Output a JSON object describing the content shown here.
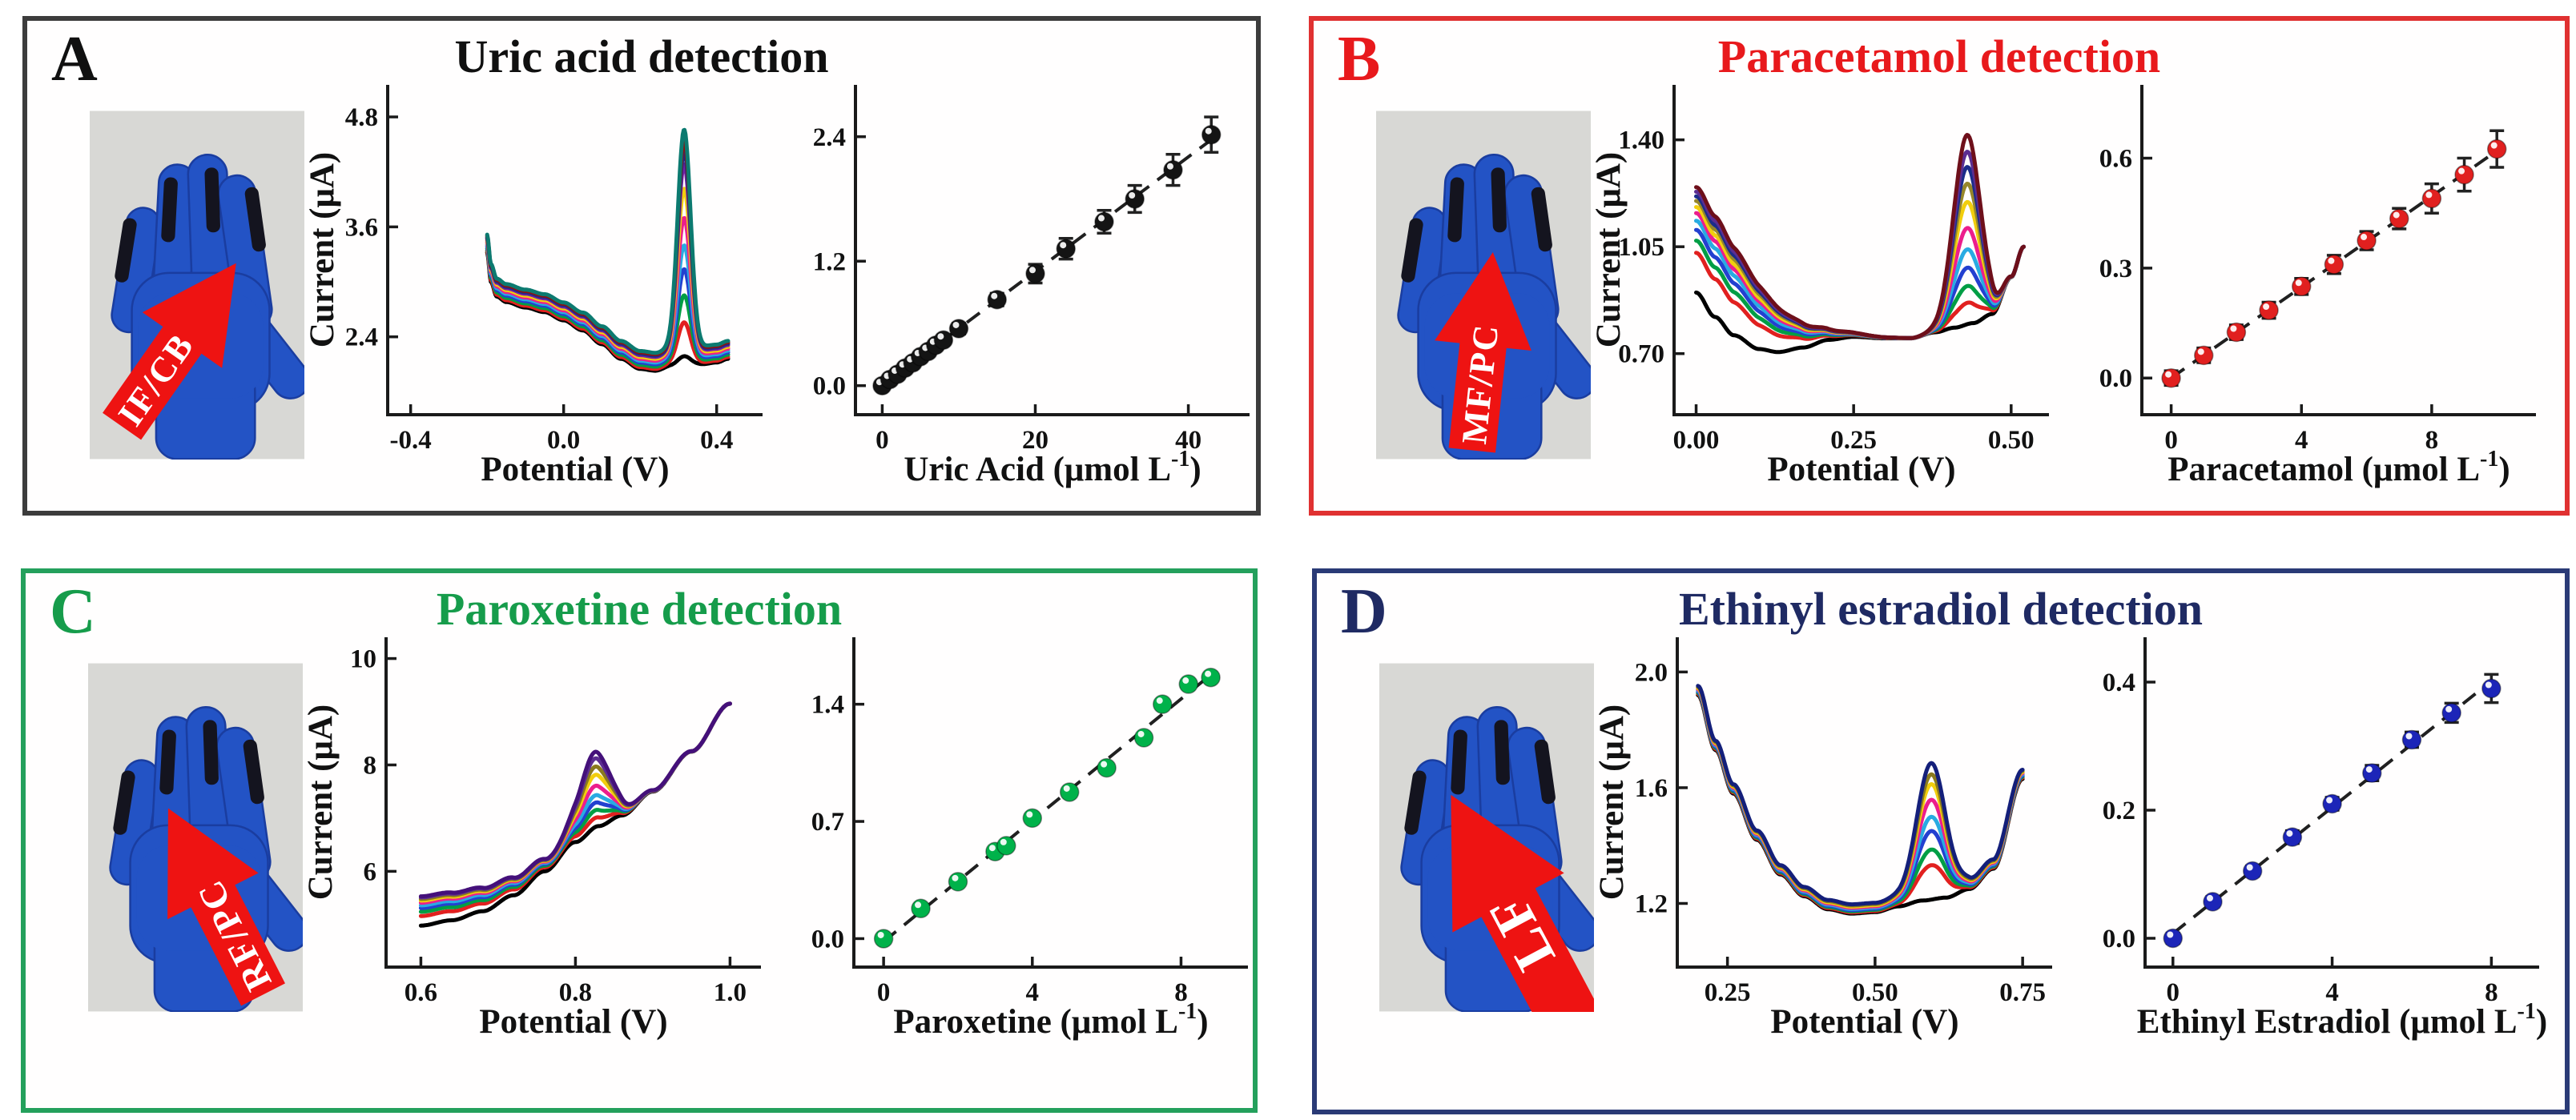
{
  "panels": [
    {
      "letter": "A",
      "title": "Uric acid detection",
      "accent_color": "#101010",
      "border_color": "#3c3c3c",
      "glove": {
        "label": "IF/CB",
        "arrow_color": "#ee1312",
        "rotation": 35,
        "scale": 1.0
      }
    },
    {
      "letter": "B",
      "title": "Paracetamol detection",
      "accent_color": "#e8191c",
      "border_color": "#e03131",
      "glove": {
        "label": "MF/PC",
        "arrow_color": "#ee1312",
        "rotation": 6,
        "scale": 1.0
      }
    },
    {
      "letter": "C",
      "title": "Paroxetine detection",
      "accent_color": "#169c4b",
      "border_color": "#24a05c",
      "glove": {
        "label": "RF/PC",
        "arrow_color": "#ee1312",
        "rotation": -27,
        "scale": 1.05
      }
    },
    {
      "letter": "D",
      "title": "Ethinyl estradiol detection",
      "accent_color": "#1f2a63",
      "border_color": "#2a3a76",
      "glove": {
        "label": "LF",
        "arrow_color": "#ee1312",
        "rotation": -28,
        "scale": 1.3
      }
    }
  ],
  "chart_data": [
    {
      "type": "line",
      "name": "uric-acid-voltammograms",
      "xlabel": "Potential (V)",
      "ylabel": "Current (μA)",
      "xlim": [
        -0.46,
        0.52
      ],
      "ylim": [
        1.55,
        5.15
      ],
      "xticks": [
        {
          "v": -0.4,
          "t": "-0.4"
        },
        {
          "v": 0.0,
          "t": "0.0"
        },
        {
          "v": 0.4,
          "t": "0.4"
        }
      ],
      "yticks": [
        {
          "v": 2.4,
          "t": "2.4"
        },
        {
          "v": 3.6,
          "t": "3.6"
        },
        {
          "v": 4.8,
          "t": "4.8"
        }
      ],
      "peak": {
        "center": 0.315,
        "width": 0.024
      },
      "base": [
        [
          -0.2,
          3.32
        ],
        [
          -0.19,
          3.0
        ],
        [
          -0.175,
          2.84
        ],
        [
          -0.15,
          2.78
        ],
        [
          -0.1,
          2.72
        ],
        [
          -0.05,
          2.67
        ],
        [
          0.0,
          2.58
        ],
        [
          0.05,
          2.47
        ],
        [
          0.1,
          2.32
        ],
        [
          0.15,
          2.16
        ],
        [
          0.2,
          2.05
        ],
        [
          0.24,
          2.03
        ],
        [
          0.28,
          2.08
        ],
        [
          0.36,
          2.1
        ],
        [
          0.4,
          2.12
        ],
        [
          0.43,
          2.16
        ]
      ],
      "series": [
        {
          "color": "#000000",
          "peak": 0.1,
          "shift": 0.0
        },
        {
          "color": "#e1201f",
          "peak": 0.45,
          "shift": 0.02
        },
        {
          "color": "#009e45",
          "peak": 0.72,
          "shift": 0.045
        },
        {
          "color": "#2340d0",
          "peak": 0.98,
          "shift": 0.07
        },
        {
          "color": "#29abe2",
          "peak": 1.22,
          "shift": 0.09
        },
        {
          "color": "#ec1e8c",
          "peak": 1.5,
          "shift": 0.11
        },
        {
          "color": "#f2ce0d",
          "peak": 1.8,
          "shift": 0.13
        },
        {
          "color": "#7a1fa2",
          "peak": 2.05,
          "shift": 0.15
        },
        {
          "color": "#1b2c8a",
          "peak": 2.18,
          "shift": 0.165
        },
        {
          "color": "#8c1010",
          "peak": 2.28,
          "shift": 0.18
        },
        {
          "color": "#0c7a70",
          "peak": 2.38,
          "shift": 0.195
        }
      ]
    },
    {
      "type": "scatter",
      "name": "uric-acid-calibration",
      "xlabel": {
        "text": "Uric Acid (μmol L",
        "sup": "-1",
        "after": ")"
      },
      "xlim": [
        -3.5,
        48
      ],
      "ylim": [
        -0.28,
        2.9
      ],
      "xticks": [
        {
          "v": 0,
          "t": "0"
        },
        {
          "v": 20,
          "t": "20"
        },
        {
          "v": 40,
          "t": "40"
        }
      ],
      "yticks": [
        {
          "v": 0.0,
          "t": "0.0"
        },
        {
          "v": 1.2,
          "t": "1.2"
        },
        {
          "v": 2.4,
          "t": "2.4"
        }
      ],
      "marker_color": "#141414",
      "points": [
        [
          0,
          0.0,
          0.03
        ],
        [
          1,
          0.06,
          0.03
        ],
        [
          2,
          0.11,
          0.03
        ],
        [
          3,
          0.17,
          0.03
        ],
        [
          4,
          0.22,
          0.03
        ],
        [
          5,
          0.28,
          0.035
        ],
        [
          6,
          0.33,
          0.035
        ],
        [
          7,
          0.39,
          0.04
        ],
        [
          8,
          0.44,
          0.04
        ],
        [
          10,
          0.55,
          0.05
        ],
        [
          15,
          0.83,
          0.06
        ],
        [
          20,
          1.08,
          0.09
        ],
        [
          24,
          1.32,
          0.1
        ],
        [
          29,
          1.58,
          0.11
        ],
        [
          33,
          1.8,
          0.13
        ],
        [
          38,
          2.08,
          0.15
        ],
        [
          43,
          2.42,
          0.17
        ]
      ]
    },
    {
      "type": "line",
      "name": "paracetamol-voltammograms",
      "xlabel": "Potential (V)",
      "ylabel": "Current (μA)",
      "xlim": [
        -0.035,
        0.56
      ],
      "ylim": [
        0.5,
        1.58
      ],
      "xticks": [
        {
          "v": 0.0,
          "t": "0.00"
        },
        {
          "v": 0.25,
          "t": "0.25"
        },
        {
          "v": 0.5,
          "t": "0.50"
        }
      ],
      "yticks": [
        {
          "v": 0.7,
          "t": "0.70"
        },
        {
          "v": 1.05,
          "t": "1.05"
        },
        {
          "v": 1.4,
          "t": "1.40"
        }
      ],
      "peak": {
        "center": 0.43,
        "width": 0.03
      },
      "boost": {
        "center": 0.0,
        "width": 0.14
      },
      "base": [
        [
          0.0,
          0.9
        ],
        [
          0.03,
          0.82
        ],
        [
          0.06,
          0.76
        ],
        [
          0.1,
          0.715
        ],
        [
          0.13,
          0.705
        ],
        [
          0.17,
          0.72
        ],
        [
          0.21,
          0.745
        ],
        [
          0.25,
          0.755
        ],
        [
          0.3,
          0.75
        ],
        [
          0.34,
          0.75
        ],
        [
          0.38,
          0.77
        ],
        [
          0.41,
          0.785
        ],
        [
          0.44,
          0.8
        ],
        [
          0.47,
          0.83
        ],
        [
          0.5,
          0.95
        ],
        [
          0.52,
          1.05
        ]
      ],
      "series": [
        {
          "color": "#000000",
          "peak": 0.0,
          "shift": 0.0
        },
        {
          "color": "#e1201f",
          "peak": 0.07,
          "shift": 0.13
        },
        {
          "color": "#009e45",
          "peak": 0.125,
          "shift": 0.17
        },
        {
          "color": "#2340d0",
          "peak": 0.185,
          "shift": 0.205
        },
        {
          "color": "#29abe2",
          "peak": 0.245,
          "shift": 0.235
        },
        {
          "color": "#ec1e8c",
          "peak": 0.315,
          "shift": 0.26
        },
        {
          "color": "#f2ce0d",
          "peak": 0.4,
          "shift": 0.28
        },
        {
          "color": "#96872a",
          "peak": 0.46,
          "shift": 0.3
        },
        {
          "color": "#1b2c8a",
          "peak": 0.515,
          "shift": 0.315
        },
        {
          "color": "#5c2d91",
          "peak": 0.565,
          "shift": 0.33
        },
        {
          "color": "#6e0f1a",
          "peak": 0.62,
          "shift": 0.345
        }
      ]
    },
    {
      "type": "scatter",
      "name": "paracetamol-calibration",
      "xlabel": {
        "text": "Paracetamol (μmol L",
        "sup": "-1",
        "after": ")"
      },
      "xlim": [
        -0.9,
        11.2
      ],
      "ylim": [
        -0.1,
        0.8
      ],
      "xticks": [
        {
          "v": 0,
          "t": "0"
        },
        {
          "v": 4,
          "t": "4"
        },
        {
          "v": 8,
          "t": "8"
        }
      ],
      "yticks": [
        {
          "v": 0.0,
          "t": "0.0"
        },
        {
          "v": 0.3,
          "t": "0.3"
        },
        {
          "v": 0.6,
          "t": "0.6"
        }
      ],
      "marker_color": "#e1201f",
      "points": [
        [
          0,
          0.0,
          0.02
        ],
        [
          1,
          0.062,
          0.02
        ],
        [
          2,
          0.125,
          0.02
        ],
        [
          3,
          0.185,
          0.022
        ],
        [
          4,
          0.25,
          0.022
        ],
        [
          5,
          0.31,
          0.025
        ],
        [
          6,
          0.375,
          0.025
        ],
        [
          7,
          0.435,
          0.028
        ],
        [
          8,
          0.49,
          0.04
        ],
        [
          9,
          0.555,
          0.045
        ],
        [
          10,
          0.625,
          0.05
        ]
      ]
    },
    {
      "type": "line",
      "name": "paroxetine-voltammograms",
      "xlabel": "Potential (V)",
      "ylabel": "Current (μA)",
      "xlim": [
        0.555,
        1.04
      ],
      "ylim": [
        4.2,
        10.4
      ],
      "xticks": [
        {
          "v": 0.6,
          "t": "0.6"
        },
        {
          "v": 0.8,
          "t": "0.8"
        },
        {
          "v": 1.0,
          "t": "1.0"
        }
      ],
      "yticks": [
        {
          "v": 6,
          "t": "6"
        },
        {
          "v": 8,
          "t": "8"
        },
        {
          "v": 10,
          "t": "10"
        }
      ],
      "peak": {
        "center": 0.825,
        "width": 0.028
      },
      "boost": {
        "center": 0.6,
        "width": 0.17
      },
      "base": [
        [
          0.6,
          4.98
        ],
        [
          0.64,
          5.08
        ],
        [
          0.68,
          5.25
        ],
        [
          0.72,
          5.55
        ],
        [
          0.76,
          6.0
        ],
        [
          0.8,
          6.55
        ],
        [
          0.83,
          6.85
        ],
        [
          0.86,
          7.05
        ],
        [
          0.9,
          7.5
        ],
        [
          0.95,
          8.25
        ],
        [
          1.0,
          9.15
        ]
      ],
      "series": [
        {
          "color": "#000000",
          "peak": 0.0,
          "shift": 0.0
        },
        {
          "color": "#e1201f",
          "peak": 0.14,
          "shift": 0.18
        },
        {
          "color": "#009e45",
          "peak": 0.27,
          "shift": 0.26
        },
        {
          "color": "#2340d0",
          "peak": 0.4,
          "shift": 0.33
        },
        {
          "color": "#29abe2",
          "peak": 0.53,
          "shift": 0.38
        },
        {
          "color": "#ec1e8c",
          "peak": 0.7,
          "shift": 0.43
        },
        {
          "color": "#f2ce0d",
          "peak": 0.9,
          "shift": 0.47
        },
        {
          "color": "#8a7a1e",
          "peak": 1.05,
          "shift": 0.5
        },
        {
          "color": "#5c2d91",
          "peak": 1.2,
          "shift": 0.53
        },
        {
          "color": "#44107a",
          "peak": 1.32,
          "shift": 0.55
        }
      ]
    },
    {
      "type": "scatter",
      "name": "paroxetine-calibration",
      "xlabel": {
        "text": "Paroxetine (μmol L",
        "sup": "-1",
        "after": ")"
      },
      "xlim": [
        -0.8,
        9.8
      ],
      "ylim": [
        -0.17,
        1.8
      ],
      "xticks": [
        {
          "v": 0,
          "t": "0"
        },
        {
          "v": 4,
          "t": "4"
        },
        {
          "v": 8,
          "t": "8"
        }
      ],
      "yticks": [
        {
          "v": 0.0,
          "t": "0.0"
        },
        {
          "v": 0.7,
          "t": "0.7"
        },
        {
          "v": 1.4,
          "t": "1.4"
        }
      ],
      "marker_color": "#00b24a",
      "points": [
        [
          0,
          0.0,
          0
        ],
        [
          1,
          0.18,
          0
        ],
        [
          2,
          0.34,
          0
        ],
        [
          3,
          0.52,
          0
        ],
        [
          3.3,
          0.555,
          0
        ],
        [
          4,
          0.72,
          0
        ],
        [
          5,
          0.875,
          0
        ],
        [
          6,
          1.02,
          0
        ],
        [
          7,
          1.2,
          0
        ],
        [
          7.5,
          1.4,
          0
        ],
        [
          8.2,
          1.52,
          0
        ],
        [
          8.8,
          1.56,
          0
        ]
      ]
    },
    {
      "type": "line",
      "name": "ethinyl-estradiol-voltammograms",
      "xlabel": "Potential (V)",
      "ylabel": "Current (μA)",
      "xlim": [
        0.165,
        0.8
      ],
      "ylim": [
        0.98,
        2.12
      ],
      "xticks": [
        {
          "v": 0.25,
          "t": "0.25"
        },
        {
          "v": 0.5,
          "t": "0.50"
        },
        {
          "v": 0.75,
          "t": "0.75"
        }
      ],
      "yticks": [
        {
          "v": 1.2,
          "t": "1.2"
        },
        {
          "v": 1.6,
          "t": "1.6"
        },
        {
          "v": 2.0,
          "t": "2.0"
        }
      ],
      "peak": {
        "center": 0.595,
        "width": 0.033
      },
      "base": [
        [
          0.2,
          1.92
        ],
        [
          0.23,
          1.73
        ],
        [
          0.26,
          1.58
        ],
        [
          0.3,
          1.42
        ],
        [
          0.34,
          1.3
        ],
        [
          0.38,
          1.225
        ],
        [
          0.42,
          1.18
        ],
        [
          0.46,
          1.165
        ],
        [
          0.5,
          1.17
        ],
        [
          0.54,
          1.19
        ],
        [
          0.58,
          1.21
        ],
        [
          0.62,
          1.22
        ],
        [
          0.66,
          1.25
        ],
        [
          0.7,
          1.32
        ],
        [
          0.75,
          1.63
        ]
      ],
      "series": [
        {
          "color": "#000000",
          "peak": 0.0,
          "shift": 0.0
        },
        {
          "color": "#e1201f",
          "peak": 0.115,
          "shift": 0.004
        },
        {
          "color": "#009e45",
          "peak": 0.165,
          "shift": 0.008
        },
        {
          "color": "#2340d0",
          "peak": 0.225,
          "shift": 0.012
        },
        {
          "color": "#29abe2",
          "peak": 0.27,
          "shift": 0.016
        },
        {
          "color": "#ec1e8c",
          "peak": 0.325,
          "shift": 0.02
        },
        {
          "color": "#f2ce0d",
          "peak": 0.375,
          "shift": 0.024
        },
        {
          "color": "#8a7a1e",
          "peak": 0.405,
          "shift": 0.028
        },
        {
          "color": "#141f7a",
          "peak": 0.44,
          "shift": 0.032
        }
      ]
    },
    {
      "type": "scatter",
      "name": "ethinyl-estradiol-calibration",
      "xlabel": {
        "text": "Ethinyl Estradiol (μmol L",
        "sup": "-1",
        "after": ")"
      },
      "xlim": [
        -0.7,
        9.2
      ],
      "ylim": [
        -0.045,
        0.47
      ],
      "xticks": [
        {
          "v": 0,
          "t": "0"
        },
        {
          "v": 4,
          "t": "4"
        },
        {
          "v": 8,
          "t": "8"
        }
      ],
      "yticks": [
        {
          "v": 0.0,
          "t": "0.0"
        },
        {
          "v": 0.2,
          "t": "0.2"
        },
        {
          "v": 0.4,
          "t": "0.4"
        }
      ],
      "marker_color": "#1c25b8",
      "points": [
        [
          0,
          0.0,
          0.008
        ],
        [
          1,
          0.057,
          0.008
        ],
        [
          2,
          0.105,
          0.008
        ],
        [
          3,
          0.158,
          0.01
        ],
        [
          4,
          0.21,
          0.01
        ],
        [
          5,
          0.258,
          0.012
        ],
        [
          6,
          0.31,
          0.012
        ],
        [
          7,
          0.352,
          0.015
        ],
        [
          8,
          0.39,
          0.022
        ]
      ]
    }
  ]
}
